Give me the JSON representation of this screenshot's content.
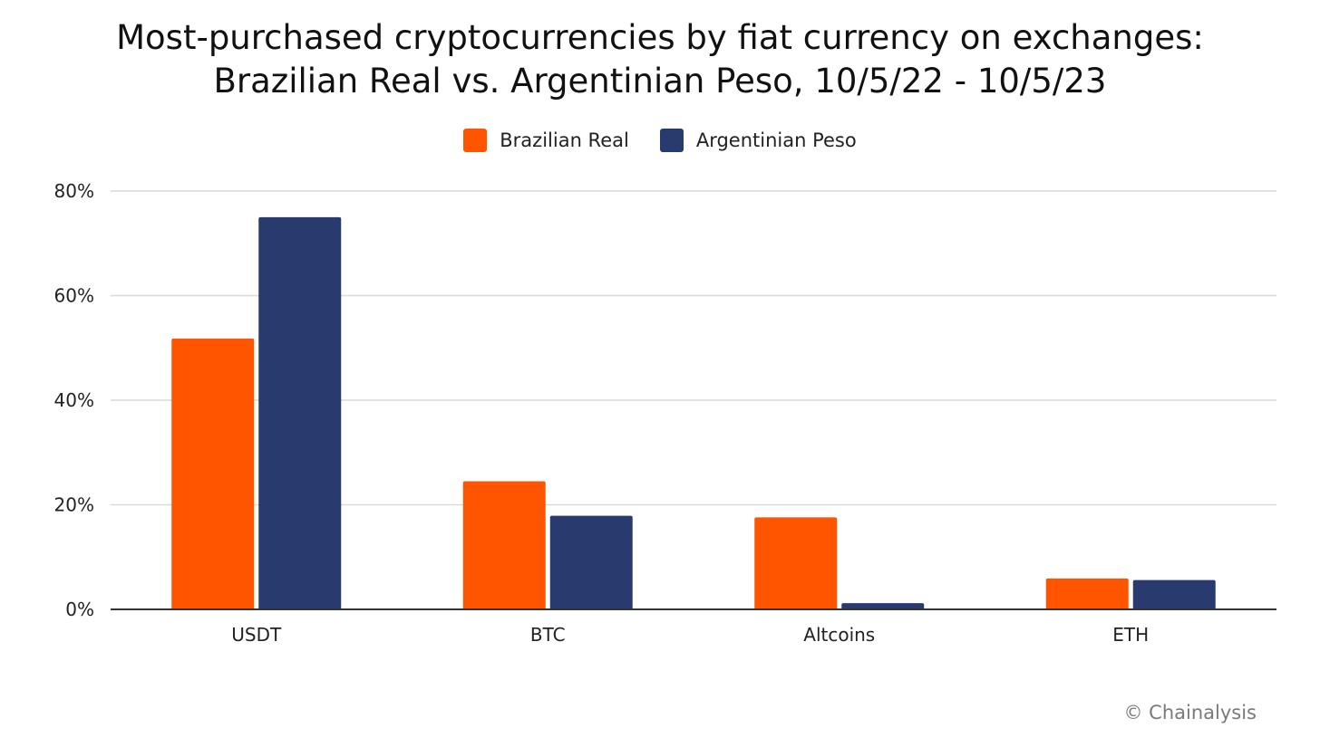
{
  "title_line1": "Most-purchased cryptocurrencies by fiat currency on exchanges:",
  "title_line2": "Brazilian Real vs. Argentinian Peso, 10/5/22 - 10/5/23",
  "footer": "© Chainalysis",
  "chart_data": {
    "type": "bar",
    "title": "Most-purchased cryptocurrencies by fiat currency on exchanges: Brazilian Real vs. Argentinian Peso, 10/5/22 - 10/5/23",
    "categories": [
      "USDT",
      "BTC",
      "Altcoins",
      "ETH"
    ],
    "series": [
      {
        "name": "Brazilian Real",
        "color": "#ff5500",
        "values": [
          51.8,
          24.5,
          17.6,
          5.9
        ]
      },
      {
        "name": "Argentinian Peso",
        "color": "#283a6e",
        "values": [
          75.0,
          17.9,
          1.2,
          5.6
        ]
      }
    ],
    "xlabel": "",
    "ylabel": "",
    "ylim": [
      0,
      80
    ],
    "y_ticks": [
      "0%",
      "20%",
      "40%",
      "60%",
      "80%"
    ],
    "y_tick_values": [
      0,
      20,
      40,
      60,
      80
    ],
    "grid": true,
    "legend_position": "top-center"
  }
}
